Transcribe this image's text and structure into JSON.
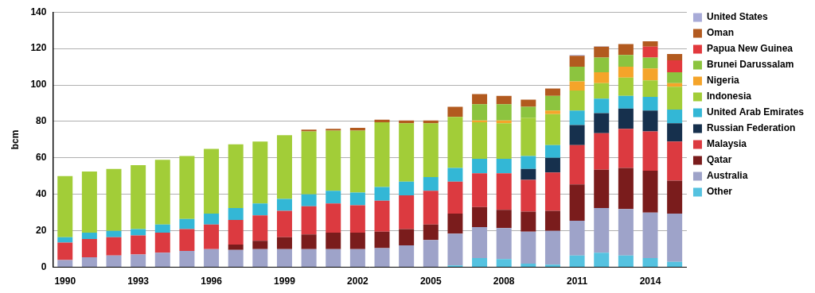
{
  "chart_data": {
    "type": "bar",
    "stacked": true,
    "grid": true,
    "legend": "right",
    "y_label": "bcm",
    "categories": [
      "1990",
      null,
      null,
      "1993",
      null,
      null,
      "1996",
      null,
      null,
      "1999",
      null,
      null,
      "2002",
      null,
      null,
      "2005",
      null,
      null,
      "2008",
      null,
      null,
      "2011",
      null,
      null,
      "2014",
      null
    ],
    "ylim": [
      0,
      140
    ],
    "yticks": [
      0,
      20,
      40,
      60,
      80,
      100,
      120,
      140
    ],
    "series": [
      {
        "name": "Other",
        "color": "#55c2e0",
        "values": [
          0,
          0,
          0,
          0,
          0,
          0,
          0,
          0,
          0,
          0,
          0,
          0,
          0,
          0,
          0,
          0,
          1,
          5,
          4.5,
          2,
          1.5,
          6.5,
          8,
          6.5,
          5,
          3
        ]
      },
      {
        "name": "Australia",
        "color": "#9ea3c9",
        "values": [
          4,
          5.5,
          6.5,
          7,
          8,
          9,
          10,
          9.5,
          10,
          10,
          10,
          10,
          10,
          10.5,
          12,
          15,
          17.5,
          17,
          17,
          17.5,
          18.5,
          19,
          24.5,
          25.5,
          25,
          26.5
        ]
      },
      {
        "name": "Qatar",
        "color": "#7a1c1c",
        "values": [
          0,
          0,
          0,
          0,
          0,
          0,
          0,
          3,
          4.5,
          6.5,
          8,
          9,
          9,
          9,
          9,
          8.5,
          11,
          11,
          10,
          11,
          11,
          20,
          21,
          22.5,
          23,
          18
        ]
      },
      {
        "name": "Malaysia",
        "color": "#dc3a40",
        "values": [
          9.5,
          10,
          10,
          10.5,
          11,
          12,
          13.5,
          13.5,
          14,
          14.5,
          15.5,
          16,
          15,
          17,
          18.5,
          18.5,
          17.5,
          18.5,
          20,
          17.5,
          21,
          21.5,
          20,
          21.5,
          21.5,
          21.5
        ]
      },
      {
        "name": "Russian Federation",
        "color": "#16304d",
        "values": [
          0,
          0,
          0,
          0,
          0,
          0,
          0,
          0,
          0,
          0,
          0,
          0,
          0,
          0,
          0,
          0,
          0,
          0,
          0,
          6,
          8,
          11,
          11,
          11,
          11.5,
          10
        ]
      },
      {
        "name": "United Arab Emirates",
        "color": "#33b7d6",
        "values": [
          3,
          3.5,
          3.5,
          3.5,
          4.5,
          5.5,
          6,
          6.5,
          6.5,
          6.5,
          6.5,
          7,
          7,
          7.5,
          7.5,
          7.5,
          7.5,
          8,
          8,
          7,
          7,
          8,
          8,
          7,
          7.5,
          7.5
        ]
      },
      {
        "name": "Indonesia",
        "color": "#a2cd38",
        "values": [
          33.5,
          33.5,
          34,
          35,
          35.5,
          34.5,
          35.5,
          35,
          34,
          35,
          34.5,
          33,
          34,
          35.5,
          32,
          29.5,
          28,
          20,
          19.5,
          21,
          17,
          11,
          8.5,
          10,
          9,
          12.5
        ]
      },
      {
        "name": "Nigeria",
        "color": "#f5a42a",
        "values": [
          0,
          0,
          0,
          0,
          0,
          0,
          0,
          0,
          0,
          0,
          0,
          0,
          0,
          0,
          0,
          0,
          0,
          1,
          1.5,
          0,
          2,
          5,
          6,
          6,
          6.5,
          2
        ]
      },
      {
        "name": "Brunei Darussalam",
        "color": "#8cc43f",
        "values": [
          0,
          0,
          0,
          0,
          0,
          0,
          0,
          0,
          0,
          0,
          0,
          0,
          0,
          0,
          0,
          0,
          0,
          9,
          9,
          6,
          8,
          8,
          8,
          6.5,
          6,
          6
        ]
      },
      {
        "name": "Papua New Guinea",
        "color": "#e2393d",
        "values": [
          0,
          0,
          0,
          0,
          0,
          0,
          0,
          0,
          0,
          0,
          0,
          0,
          0,
          0,
          0,
          0,
          0,
          0,
          0,
          0,
          0,
          0,
          0,
          0,
          6,
          6.5
        ]
      },
      {
        "name": "Oman",
        "color": "#b25a1f",
        "values": [
          0,
          0,
          0,
          0,
          0,
          0,
          0,
          0,
          0,
          0,
          1,
          1,
          1.5,
          1.5,
          1.5,
          1.5,
          5.5,
          5.5,
          4.5,
          4,
          4,
          6,
          6,
          6,
          3,
          3.5
        ]
      },
      {
        "name": "United States",
        "color": "#a8abd8",
        "values": [
          0,
          0,
          0,
          0,
          0,
          0,
          0,
          0,
          0,
          0,
          0,
          0,
          0,
          0,
          0,
          0,
          0,
          0,
          0,
          0,
          0,
          0.5,
          0.3,
          0,
          0,
          0
        ]
      }
    ]
  }
}
